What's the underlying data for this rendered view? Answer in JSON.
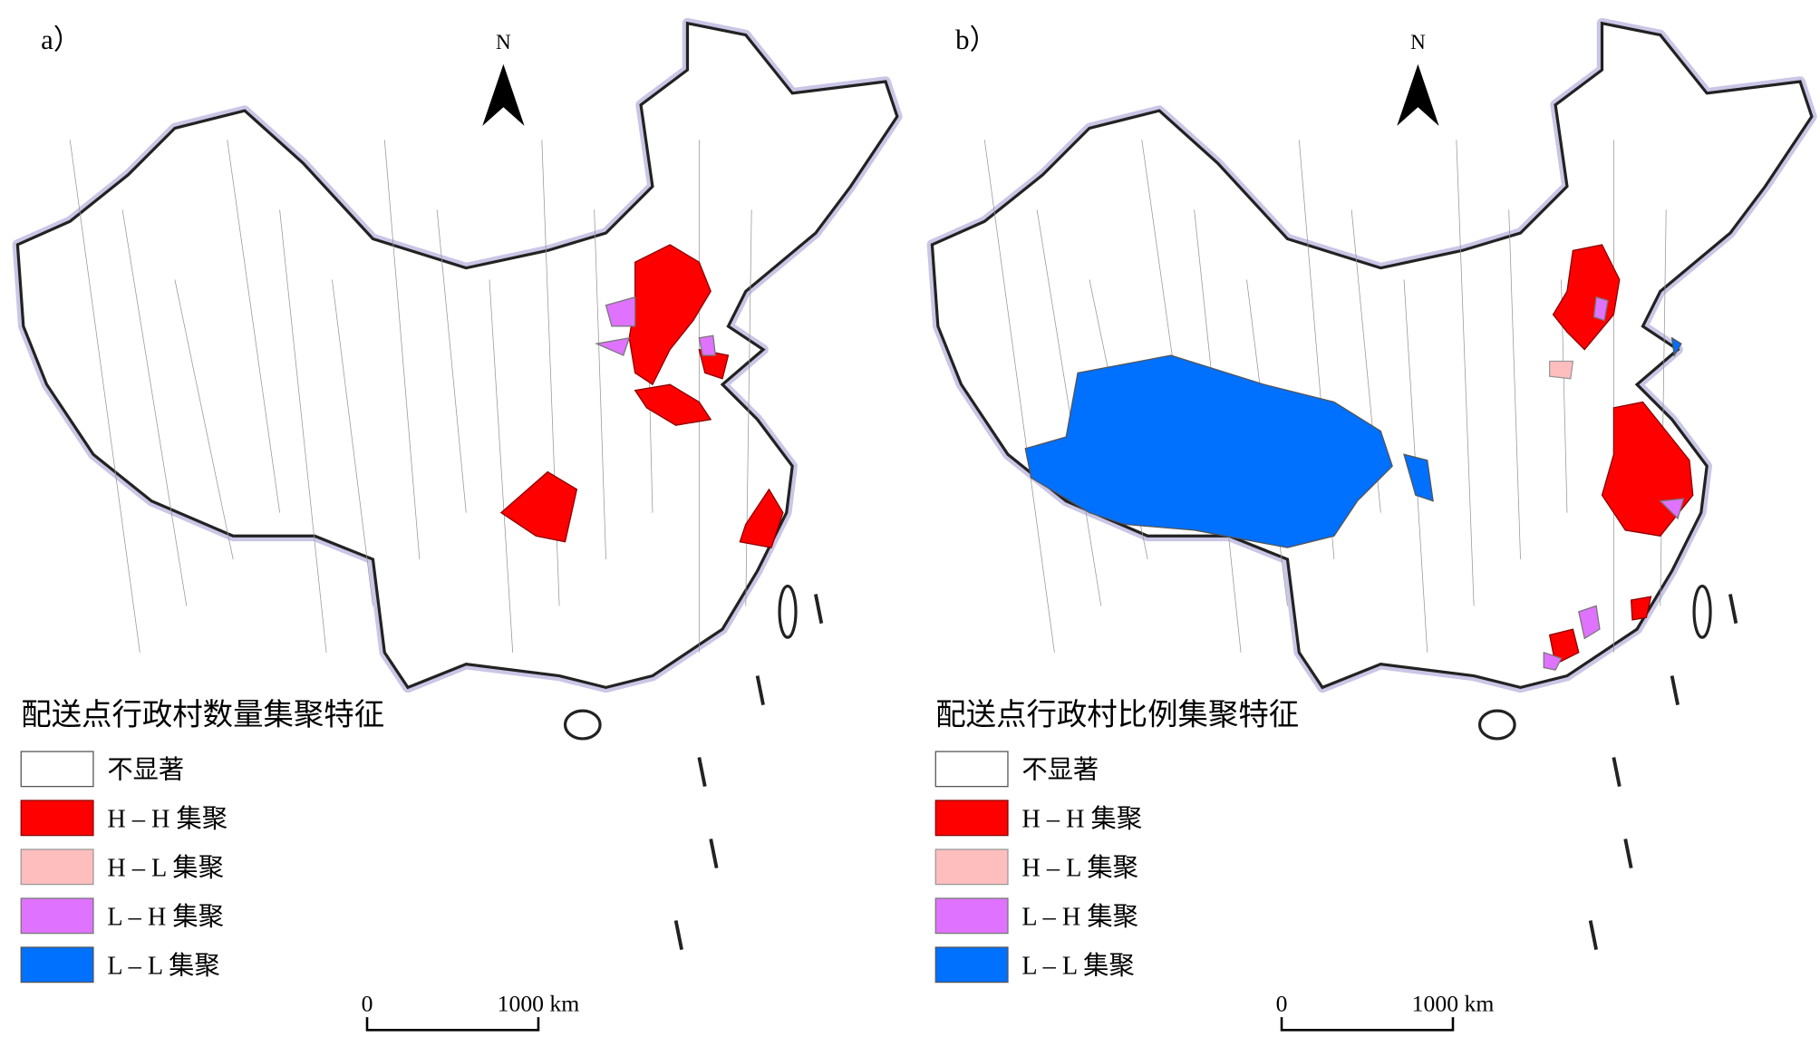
{
  "panels": [
    {
      "label": "a）",
      "north": "N",
      "legend": {
        "title": "配送点行政村数量集聚特征",
        "items": [
          "不显著",
          "H – H 集聚",
          "H – L 集聚",
          "L – H 集聚",
          "L – L 集聚"
        ]
      },
      "scale_bar": {
        "start": "0",
        "end": "1000 km"
      }
    },
    {
      "label": "b）",
      "north": "N",
      "legend": {
        "title": "配送点行政村比例集聚特征",
        "items": [
          "不显著",
          "H – H 集聚",
          "H – L 集聚",
          "L – H 集聚",
          "L – L 集聚"
        ]
      },
      "scale_bar": {
        "start": "0",
        "end": "1000 km"
      }
    }
  ]
}
